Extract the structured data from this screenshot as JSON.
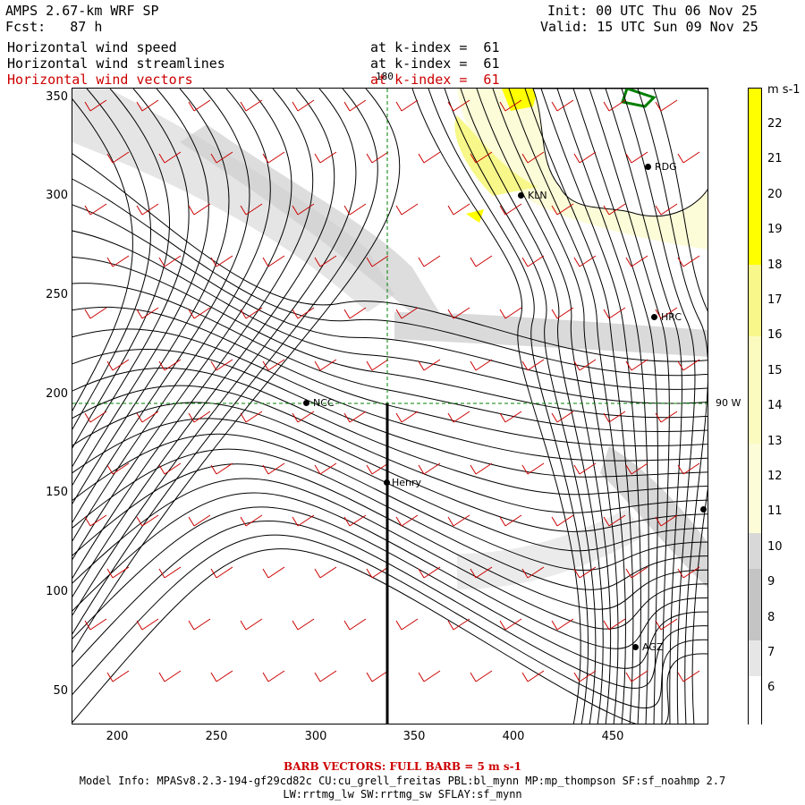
{
  "header": {
    "title": "AMPS 2.67-km WRF SP",
    "init": "Init: 00 UTC Thu 06 Nov 25",
    "fcst": "Fcst:   87 h",
    "valid": "Valid: 15 UTC Sun 09 Nov 25",
    "lines": [
      {
        "label": "Horizontal wind speed",
        "kindex": "at k-index =  61"
      },
      {
        "label": "Horizontal wind streamlines",
        "kindex": "at k-index =  61"
      },
      {
        "label": "Horizontal wind vectors",
        "kindex": "at k-index =  61"
      }
    ]
  },
  "axes": {
    "x_ticks": [
      "200",
      "250",
      "300",
      "350",
      "400",
      "450"
    ],
    "y_ticks": [
      "350",
      "300",
      "250",
      "200",
      "150",
      "100",
      "50"
    ],
    "lon_180": "180",
    "lon_90w": "90 W"
  },
  "stations": [
    {
      "name": "RDG"
    },
    {
      "name": "KLN"
    },
    {
      "name": "HRC"
    },
    {
      "name": "NCC"
    },
    {
      "name": "Henry"
    },
    {
      "name": "AGZ"
    }
  ],
  "colorbar": {
    "unit": "m s-1",
    "labels": [
      "22",
      "21",
      "20",
      "19",
      "18",
      "17",
      "16",
      "15",
      "14",
      "13",
      "12",
      "11",
      "10",
      "9",
      "8",
      "7",
      "6"
    ],
    "colors": [
      "#ffff00",
      "#f8f88a",
      "#fbfbc0",
      "#fcfcd8",
      "#d8d8d8",
      "#c4c4c4",
      "#e6e6e6",
      "#ffffff"
    ]
  },
  "footer": {
    "barb": "BARB VECTORS:  FULL BARB = 5 m s-1",
    "model": "Model Info: MPASv8.2.3-194-gf29cd82c CU:cu_grell_freitas PBL:bl_mynn MP:mp_thompson SF:sf_noahmp 2.7",
    "model2": "LW:rrtmg_lw SW:rrtmg_sw SFLAY:sf_mynn"
  }
}
